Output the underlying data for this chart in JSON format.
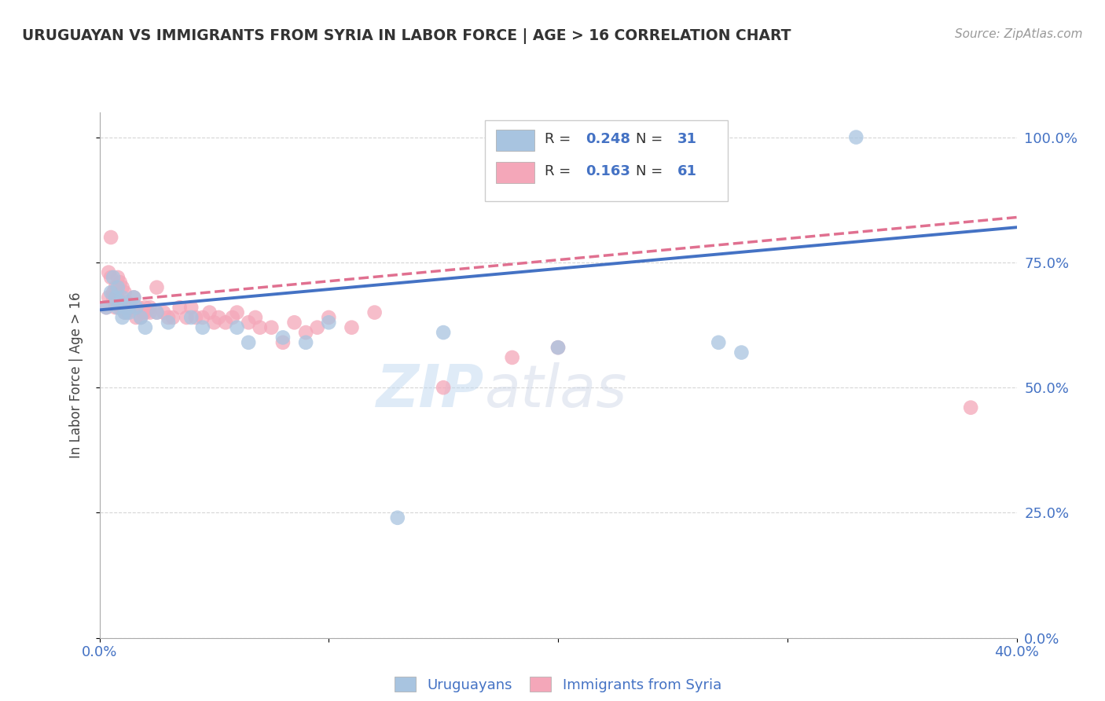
{
  "title": "URUGUAYAN VS IMMIGRANTS FROM SYRIA IN LABOR FORCE | AGE > 16 CORRELATION CHART",
  "source_text": "Source: ZipAtlas.com",
  "ylabel": "In Labor Force | Age > 16",
  "xlim": [
    0.0,
    0.4
  ],
  "ylim": [
    0.0,
    1.05
  ],
  "yticks": [
    0.0,
    0.25,
    0.5,
    0.75,
    1.0
  ],
  "ytick_labels": [
    "0.0%",
    "25.0%",
    "50.0%",
    "75.0%",
    "100.0%"
  ],
  "xticks": [
    0.0,
    0.1,
    0.2,
    0.3,
    0.4
  ],
  "xtick_labels": [
    "0.0%",
    "",
    "",
    "",
    "40.0%"
  ],
  "uruguayan_R": 0.248,
  "uruguayan_N": 31,
  "syria_R": 0.163,
  "syria_N": 61,
  "uruguayan_color": "#a8c4e0",
  "syria_color": "#f4a7b9",
  "uruguayan_line_color": "#4472c4",
  "syria_line_color": "#e07090",
  "watermark_zip": "ZIP",
  "watermark_atlas": "atlas",
  "uruguayan_points": [
    [
      0.003,
      0.66
    ],
    [
      0.005,
      0.69
    ],
    [
      0.006,
      0.72
    ],
    [
      0.007,
      0.68
    ],
    [
      0.008,
      0.7
    ],
    [
      0.008,
      0.66
    ],
    [
      0.009,
      0.67
    ],
    [
      0.01,
      0.64
    ],
    [
      0.01,
      0.68
    ],
    [
      0.011,
      0.65
    ],
    [
      0.012,
      0.66
    ],
    [
      0.013,
      0.65
    ],
    [
      0.015,
      0.68
    ],
    [
      0.016,
      0.66
    ],
    [
      0.018,
      0.64
    ],
    [
      0.02,
      0.62
    ],
    [
      0.025,
      0.65
    ],
    [
      0.03,
      0.63
    ],
    [
      0.04,
      0.64
    ],
    [
      0.045,
      0.62
    ],
    [
      0.06,
      0.62
    ],
    [
      0.065,
      0.59
    ],
    [
      0.08,
      0.6
    ],
    [
      0.09,
      0.59
    ],
    [
      0.1,
      0.63
    ],
    [
      0.13,
      0.24
    ],
    [
      0.15,
      0.61
    ],
    [
      0.2,
      0.58
    ],
    [
      0.27,
      0.59
    ],
    [
      0.28,
      0.57
    ],
    [
      0.33,
      1.0
    ]
  ],
  "syria_points": [
    [
      0.003,
      0.66
    ],
    [
      0.004,
      0.73
    ],
    [
      0.004,
      0.68
    ],
    [
      0.005,
      0.72
    ],
    [
      0.005,
      0.8
    ],
    [
      0.006,
      0.69
    ],
    [
      0.006,
      0.68
    ],
    [
      0.007,
      0.7
    ],
    [
      0.007,
      0.66
    ],
    [
      0.008,
      0.72
    ],
    [
      0.008,
      0.68
    ],
    [
      0.009,
      0.71
    ],
    [
      0.009,
      0.66
    ],
    [
      0.01,
      0.7
    ],
    [
      0.01,
      0.66
    ],
    [
      0.011,
      0.69
    ],
    [
      0.011,
      0.65
    ],
    [
      0.012,
      0.67
    ],
    [
      0.012,
      0.65
    ],
    [
      0.013,
      0.66
    ],
    [
      0.014,
      0.66
    ],
    [
      0.015,
      0.68
    ],
    [
      0.016,
      0.64
    ],
    [
      0.017,
      0.66
    ],
    [
      0.018,
      0.64
    ],
    [
      0.019,
      0.65
    ],
    [
      0.02,
      0.66
    ],
    [
      0.02,
      0.65
    ],
    [
      0.022,
      0.66
    ],
    [
      0.022,
      0.65
    ],
    [
      0.025,
      0.7
    ],
    [
      0.025,
      0.65
    ],
    [
      0.028,
      0.65
    ],
    [
      0.03,
      0.64
    ],
    [
      0.032,
      0.64
    ],
    [
      0.035,
      0.66
    ],
    [
      0.038,
      0.64
    ],
    [
      0.04,
      0.66
    ],
    [
      0.042,
      0.64
    ],
    [
      0.045,
      0.64
    ],
    [
      0.048,
      0.65
    ],
    [
      0.05,
      0.63
    ],
    [
      0.052,
      0.64
    ],
    [
      0.055,
      0.63
    ],
    [
      0.058,
      0.64
    ],
    [
      0.06,
      0.65
    ],
    [
      0.065,
      0.63
    ],
    [
      0.068,
      0.64
    ],
    [
      0.07,
      0.62
    ],
    [
      0.075,
      0.62
    ],
    [
      0.08,
      0.59
    ],
    [
      0.085,
      0.63
    ],
    [
      0.09,
      0.61
    ],
    [
      0.095,
      0.62
    ],
    [
      0.1,
      0.64
    ],
    [
      0.11,
      0.62
    ],
    [
      0.12,
      0.65
    ],
    [
      0.15,
      0.5
    ],
    [
      0.18,
      0.56
    ],
    [
      0.2,
      0.58
    ],
    [
      0.38,
      0.46
    ]
  ]
}
